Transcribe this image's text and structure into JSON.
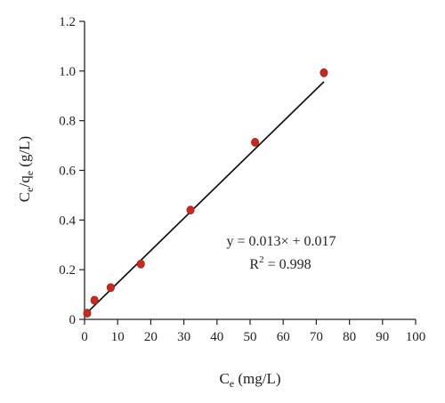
{
  "chart_data": {
    "type": "scatter",
    "xlabel": {
      "main": "C",
      "sub": "e",
      "unit": " (mg/L)"
    },
    "ylabel": {
      "main1": "C",
      "sub1": "e",
      "sep": "/q",
      "sub2": "e",
      "unit": " (g/L)"
    },
    "xlim": [
      0,
      100
    ],
    "ylim": [
      0,
      1.2
    ],
    "xticks": [
      "0",
      "10",
      "20",
      "30",
      "40",
      "50",
      "60",
      "70",
      "80",
      "90",
      "100"
    ],
    "yticks": [
      "0",
      "0.2",
      "0.4",
      "0.6",
      "0.8",
      "1.0",
      "1.2"
    ],
    "grid": false,
    "legend": "none",
    "series": [
      {
        "x": [
          0.8,
          3.0,
          7.9,
          17.0,
          32.0,
          51.5,
          72.3
        ],
        "y": [
          0.025,
          0.077,
          0.128,
          0.223,
          0.44,
          0.713,
          0.993
        ],
        "color": "#c8281e"
      }
    ],
    "fit_line": {
      "slope": 0.013,
      "intercept": 0.017,
      "x_range": [
        0.5,
        72.3
      ],
      "color": "#111111"
    },
    "annotations": {
      "equation": "y = 0.013× + 0.017",
      "r2_prefix": "R",
      "r2_sup": "2",
      "r2_value": " = 0.998"
    }
  }
}
